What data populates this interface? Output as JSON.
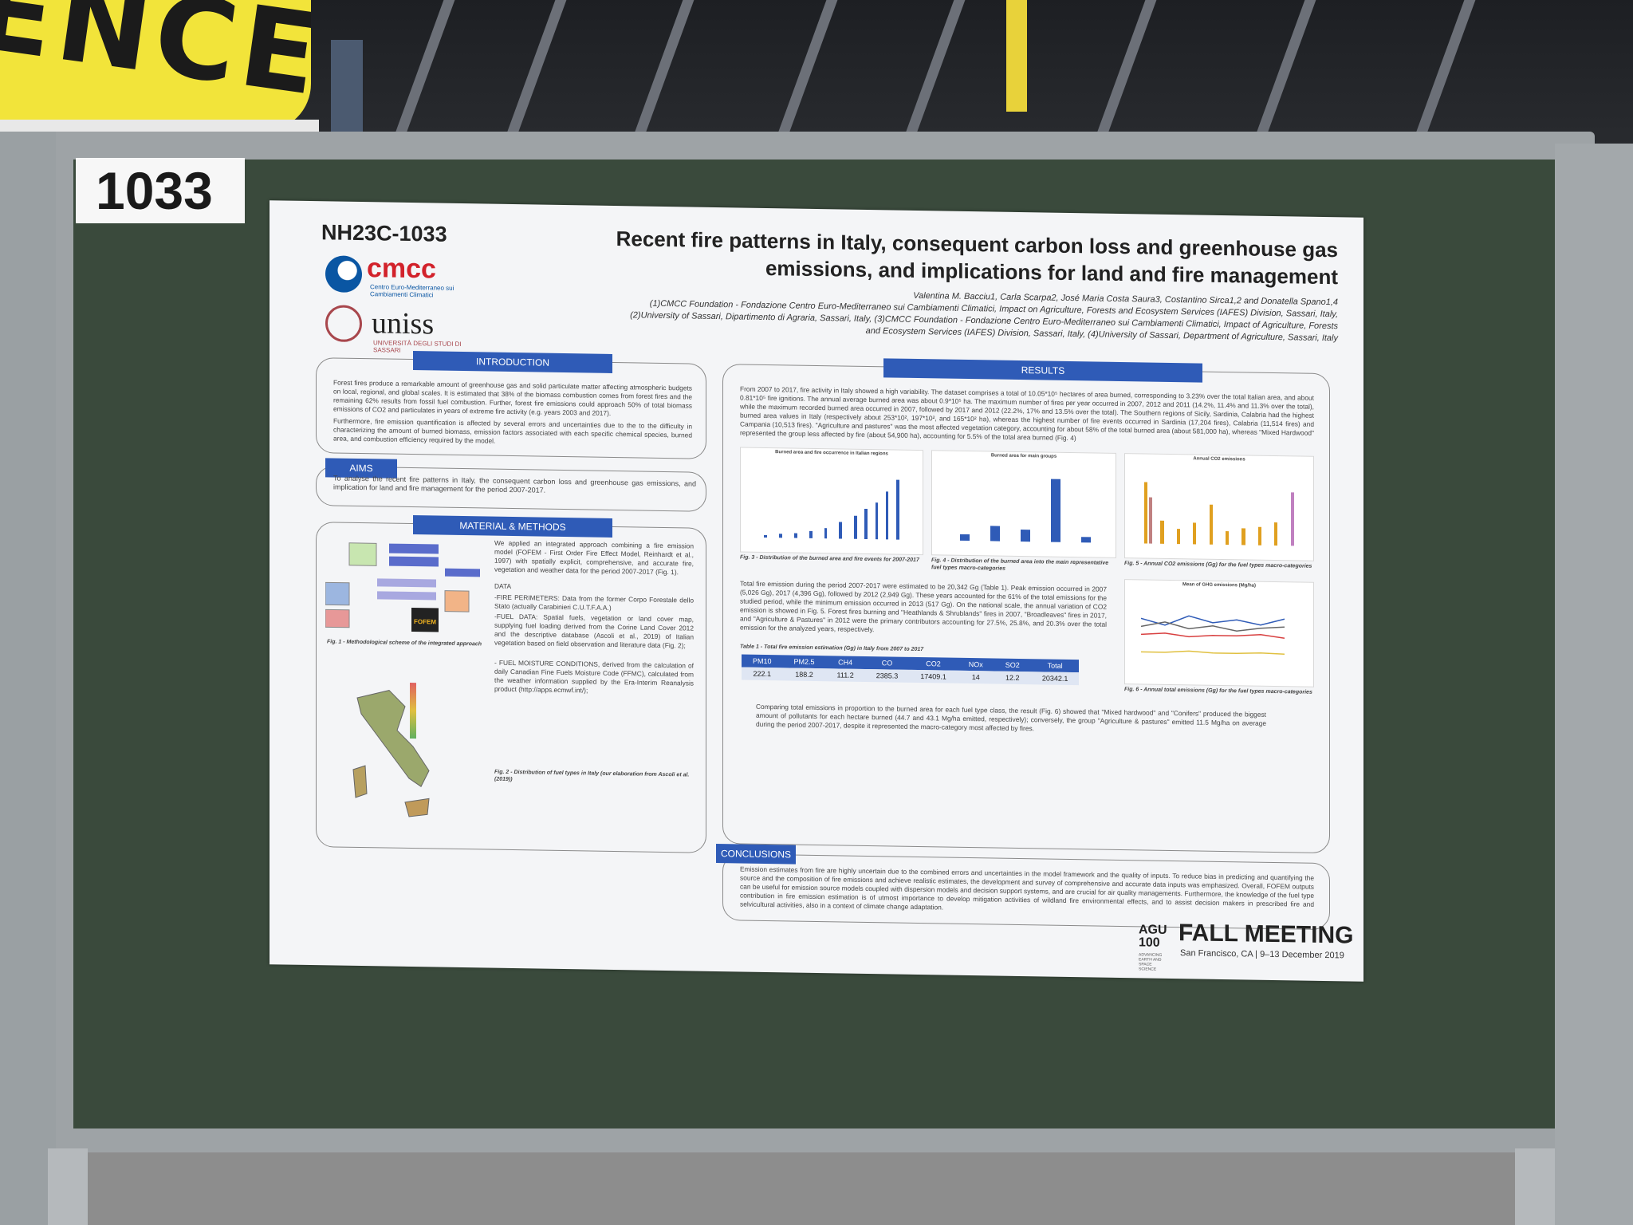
{
  "banner": {
    "text": "ENCE"
  },
  "board": {
    "number": "1033"
  },
  "poster": {
    "id": "NH23C-1033",
    "title_line1": "Recent fire patterns in Italy, consequent carbon loss and greenhouse gas",
    "title_line2": "emissions, and implications for land and fire management",
    "authors": "Valentina M. Bacciu1, Carla Scarpa2, José Maria Costa Saura3, Costantino Sirca1,2 and Donatella Spano1,4",
    "affil1": "(1)CMCC Foundation - Fondazione Centro Euro-Mediterraneo sui Cambiamenti Climatici, Impact on Agriculture, Forests and Ecosystem Services (IAFES) Division, Sassari, Italy,",
    "affil2": "(2)University of Sassari, Dipartimento di Agraria, Sassari, Italy, (3)CMCC Foundation - Fondazione Centro Euro-Mediterraneo sui Cambiamenti Climatici, Impact of Agriculture, Forests",
    "affil3": "and Ecosystem Services (IAFES) Division, Sassari, Italy, (4)University of Sassari, Department of Agriculture, Sassari, Italy",
    "logo_cmcc": {
      "word": "cmcc",
      "sub": "Centro Euro-Mediterraneo sui Cambiamenti Climatici"
    },
    "logo_uniss": {
      "word": "uniss",
      "sub": "UNIVERSITÀ DEGLI STUDI DI SASSARI"
    },
    "introduction": {
      "header": "INTRODUCTION",
      "p1": "Forest fires produce a remarkable amount of greenhouse gas and solid particulate matter affecting atmospheric budgets on local, regional, and global scales. It is estimated that 38% of the biomass combustion comes from forest fires and the remaining 62% results from fossil fuel combustion. Further, forest fire emissions could approach 50% of total biomass emissions of CO2 and particulates in years of extreme fire activity (e.g. years 2003 and 2017).",
      "p2": "Furthermore, fire emission quantification is affected by several errors and uncertainties due to the to the difficulty in characterizing the amount of burned biomass, emission factors associated with each specific chemical species, burned area, and combustion efficiency required by the model."
    },
    "aims": {
      "header": "AIMS",
      "text": "To analyse the recent fire patterns in Italy, the consequent carbon loss and greenhouse gas emissions, and implication for land and fire management for the period 2007-2017."
    },
    "methods": {
      "header": "MATERIAL & METHODS",
      "p1": "We applied an integrated approach combining a fire emission model (FOFEM - First Order Fire Effect Model, Reinhardt et al., 1997) with spatially explicit, comprehensive, and accurate fire, vegetation and weather data for the period 2007-2017 (Fig. 1).",
      "data_label": "DATA",
      "p2": "-FIRE PERIMETERS: Data from the former Corpo Forestale dello Stato (actually Carabinieri C.U.T.F.A.A.)",
      "p3": "-FUEL DATA: Spatial fuels, vegetation or land cover map, supplying fuel loading derived from the Corine Land Cover 2012 and the descriptive database (Ascoli et al., 2019) of Italian vegetation based on field observation and literature data (Fig. 2);",
      "p4": "- FUEL MOISTURE CONDITIONS, derived from the calculation of daily Canadian Fine Fuels Moisture Code (FFMC), calculated from the weather information supplied by the Era-Interim Reanalysis product (http://apps.ecmwf.int/);",
      "fig1": "Fig. 1 - Methodological scheme of the integrated approach",
      "fig2": "Fig. 2 - Distribution of fuel types in Italy (our elaboration from Ascoli et al. (2019))",
      "fofem": "FOFEM"
    },
    "results": {
      "header": "RESULTS",
      "p1": "From 2007 to 2017, fire activity in Italy showed a high variability. The dataset comprises a total of 10.05*10⁵ hectares of area burned, corresponding to 3.23% over the total Italian area, and about 0.81*10⁵ fire ignitions. The annual average burned area was about 0.9*10⁵ ha. The maximum number of fires per year occurred in 2007, 2012 and 2011 (14.2%, 11.4% and 11.3% over the total), while the maximum recorded burned area occurred in 2007, followed by 2017 and 2012 (22.2%, 17% and 13.5% over the total). The Southern regions of Sicily, Sardinia, Calabria had the highest burned area values in Italy (respectively about 253*10², 197*10², and 165*10² ha), whereas the highest number of fire events occurred in Sardinia (17,204 fires), Calabria (11,514 fires) and Campania (10,513 fires). \"Agriculture and pastures\" was the most affected vegetation category, accounting for about 58% of the total burned area (about 581,000 ha), whereas \"Mixed Hardwood\" represented the group less affected by fire (about 54,900 ha), accounting for 5.5% of the total area burned (Fig. 4)",
      "fig3": "Fig. 3 - Distribution of the burned area and fire events for 2007-2017",
      "fig4": "Fig. 4 - Distribution of the burned area into the main representative fuel types macro-categories",
      "fig5": "Fig. 5 - Annual CO2 emissions (Gg) for the fuel types macro-categories",
      "fig6": "Fig. 6 - Annual total emissions (Gg) for the fuel types macro-categories",
      "chart3_title": "Burned area and fire occurrence in Italian regions",
      "chart4_title": "Burned area for main groups",
      "chart5_title": "Annual CO2 emissions",
      "chart6_title": "Mean of GHG emissions (Mg/ha)",
      "p2": "Total fire emission during the period 2007-2017 were estimated to be 20,342 Gg (Table 1). Peak emission occurred in 2007 (5,026 Gg), 2017 (4,396 Gg), followed by 2012 (2,949 Gg). These years accounted for the 61% of the total emissions for the studied period, while the minimum emission occurred in 2013 (517 Gg). On the national scale, the annual variation of CO2 emission is showed in Fig. 5. Forest fires burning and \"Heathlands & Shrublands\" fires in 2007, \"Broadleaves\" fires in 2017, and \"Agriculture & Pastures\" in 2012 were the primary contributors accounting for 27.5%, 25.8%, and 20.3% over the total emission for the analyzed years, respectively.",
      "table_caption": "Table 1 - Total fire emission estimation (Gg) in Italy from 2007 to 2017",
      "table_headers": [
        "PM10",
        "PM2.5",
        "CH4",
        "CO",
        "CO2",
        "NOx",
        "SO2",
        "Total"
      ],
      "table_values": [
        "222.1",
        "188.2",
        "111.2",
        "2385.3",
        "17409.1",
        "14",
        "12.2",
        "20342.1"
      ],
      "p3": "Comparing total emissions in proportion to the burned area for each fuel type class, the result (Fig. 6) showed that \"Mixed hardwood\" and \"Conifers\" produced the biggest amount of pollutants for each hectare burned (44.7 and 43.1 Mg/ha emitted, respectively); conversely, the group \"Agriculture & pastures\" emitted 11.5 Mg/ha on average during the period 2007-2017, despite it represented the macro-category most affected by fires."
    },
    "conclusions": {
      "header": "CONCLUSIONS",
      "text": "Emission estimates from fire are highly uncertain due to the combined errors and uncertainties in the model framework and the quality of inputs. To reduce bias in predicting and quantifying the source and the composition of fire emissions and achieve realistic estimates, the development and survey of comprehensive and accurate data inputs was emphasized. Overall, FOFEM outputs can be useful for emission source models coupled with dispersion models and decision support systems, and are crucial for air quality managements. Furthermore, the knowledge of the fuel type contribution in fire emission estimation is of utmost importance to develop mitigation activities of wildland fire environmental effects, and to assist decision makers in prescribed fire and selvicultural activities, also in a context of climate change adaptation."
    },
    "footer": {
      "agu": "AGU 100",
      "agu_sub": "ADVANCING EARTH AND SPACE SCIENCE",
      "meeting": "FALL MEETING",
      "location": "San Francisco, CA  |  9–13 December 2019"
    }
  },
  "colors": {
    "poster_accent": "#2f5bb7",
    "board_green": "#3a4a3c",
    "banner_yellow": "#f2e43a"
  }
}
